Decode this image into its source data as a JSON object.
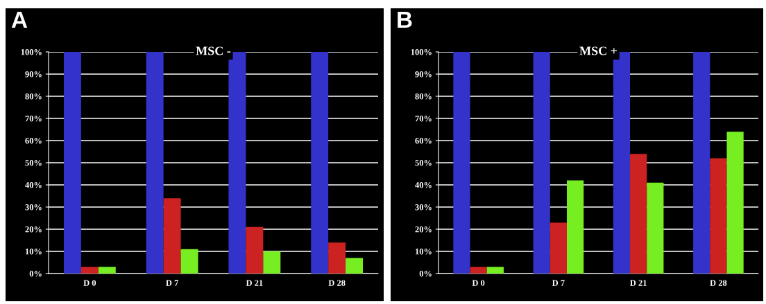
{
  "chart_data": [
    {
      "type": "bar",
      "title": "MSC -",
      "annotations": [
        "A"
      ],
      "categories": [
        "D 0",
        "D 7",
        "D 21",
        "D 28"
      ],
      "series": [
        {
          "color": "#3333cc",
          "values": [
            100,
            100,
            100,
            100
          ]
        },
        {
          "color": "#cc2222",
          "values": [
            3,
            34,
            21,
            14
          ]
        },
        {
          "color": "#77ee22",
          "values": [
            3,
            11,
            10,
            7
          ]
        }
      ],
      "ylim": [
        0,
        100
      ],
      "yticks": [
        {
          "value": 0,
          "label": "0%"
        },
        {
          "value": 10,
          "label": "10%"
        },
        {
          "value": 20,
          "label": "20%"
        },
        {
          "value": 30,
          "label": "30%"
        },
        {
          "value": 40,
          "label": "40%"
        },
        {
          "value": 50,
          "label": "50%"
        },
        {
          "value": 60,
          "label": "60%"
        },
        {
          "value": 70,
          "label": "70%"
        },
        {
          "value": 80,
          "label": "80%"
        },
        {
          "value": 90,
          "label": "90%"
        },
        {
          "value": 100,
          "label": "100%"
        }
      ],
      "grid": "y"
    },
    {
      "type": "bar",
      "title": "MSC +",
      "annotations": [
        "B"
      ],
      "categories": [
        "D 0",
        "D 7",
        "D 21",
        "D 28"
      ],
      "series": [
        {
          "color": "#3333cc",
          "values": [
            100,
            100,
            100,
            100
          ]
        },
        {
          "color": "#cc2222",
          "values": [
            3,
            23,
            54,
            52
          ]
        },
        {
          "color": "#77ee22",
          "values": [
            3,
            42,
            41,
            64
          ]
        }
      ],
      "ylim": [
        0,
        100
      ],
      "yticks": [
        {
          "value": 0,
          "label": "0%"
        },
        {
          "value": 10,
          "label": "10%"
        },
        {
          "value": 20,
          "label": "20%"
        },
        {
          "value": 30,
          "label": "30%"
        },
        {
          "value": 40,
          "label": "40%"
        },
        {
          "value": 50,
          "label": "50%"
        },
        {
          "value": 60,
          "label": "60%"
        },
        {
          "value": 70,
          "label": "70%"
        },
        {
          "value": 80,
          "label": "80%"
        },
        {
          "value": 90,
          "label": "90%"
        },
        {
          "value": 100,
          "label": "100%"
        }
      ],
      "grid": "y"
    }
  ]
}
